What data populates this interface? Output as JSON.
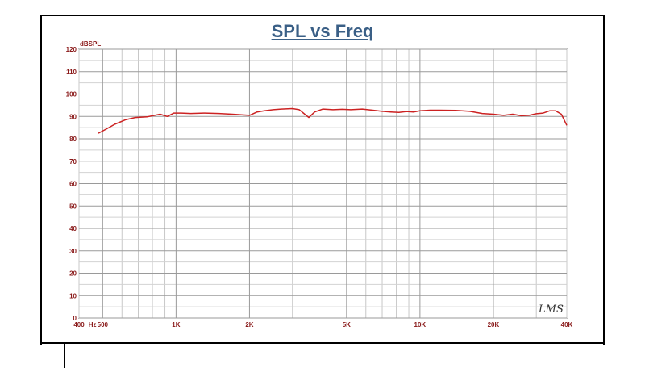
{
  "chart_data": {
    "type": "line",
    "title": "SPL vs Freq",
    "ylabel": "dBSPL",
    "xlabel": "Hz",
    "x_scale": "log",
    "xlim": [
      400,
      40000
    ],
    "ylim": [
      0,
      120
    ],
    "grid": true,
    "legend": "none",
    "y_ticks": [
      0,
      10,
      20,
      30,
      40,
      50,
      60,
      70,
      80,
      90,
      100,
      110,
      120
    ],
    "x_tick_labels": [
      {
        "x": 400,
        "label": "400"
      },
      {
        "x": 500,
        "label": "500"
      },
      {
        "x": 1000,
        "label": "1K"
      },
      {
        "x": 2000,
        "label": "2K"
      },
      {
        "x": 5000,
        "label": "5K"
      },
      {
        "x": 10000,
        "label": "10K"
      },
      {
        "x": 20000,
        "label": "20K"
      },
      {
        "x": 40000,
        "label": "40K"
      }
    ],
    "series": [
      {
        "color": "#cc2222",
        "x": [
          480,
          520,
          560,
          620,
          680,
          760,
          860,
          920,
          980,
          1050,
          1150,
          1300,
          1500,
          1700,
          2000,
          2150,
          2300,
          2500,
          2700,
          3000,
          3200,
          3500,
          3700,
          4000,
          4400,
          4800,
          5200,
          5800,
          6400,
          7000,
          7600,
          8200,
          8800,
          9400,
          10000,
          11000,
          12000,
          14000,
          16000,
          18000,
          20000,
          22000,
          24000,
          26000,
          28000,
          30000,
          32000,
          34000,
          36000,
          38000,
          40000
        ],
        "y": [
          82.5,
          84.5,
          86.5,
          88.5,
          89.5,
          89.8,
          91,
          90,
          91.5,
          91.5,
          91.3,
          91.5,
          91.3,
          91,
          90.5,
          92,
          92.5,
          93,
          93.3,
          93.5,
          93.0,
          89.5,
          92,
          93.3,
          93.0,
          93.2,
          93.0,
          93.3,
          92.8,
          92.3,
          92.0,
          91.8,
          92.2,
          92.0,
          92.5,
          92.8,
          92.8,
          92.7,
          92.3,
          91.3,
          91.0,
          90.5,
          91.0,
          90.3,
          90.5,
          91.2,
          91.5,
          92.5,
          92.5,
          91.0,
          86.0
        ]
      }
    ]
  },
  "watermark_text": "LMS"
}
